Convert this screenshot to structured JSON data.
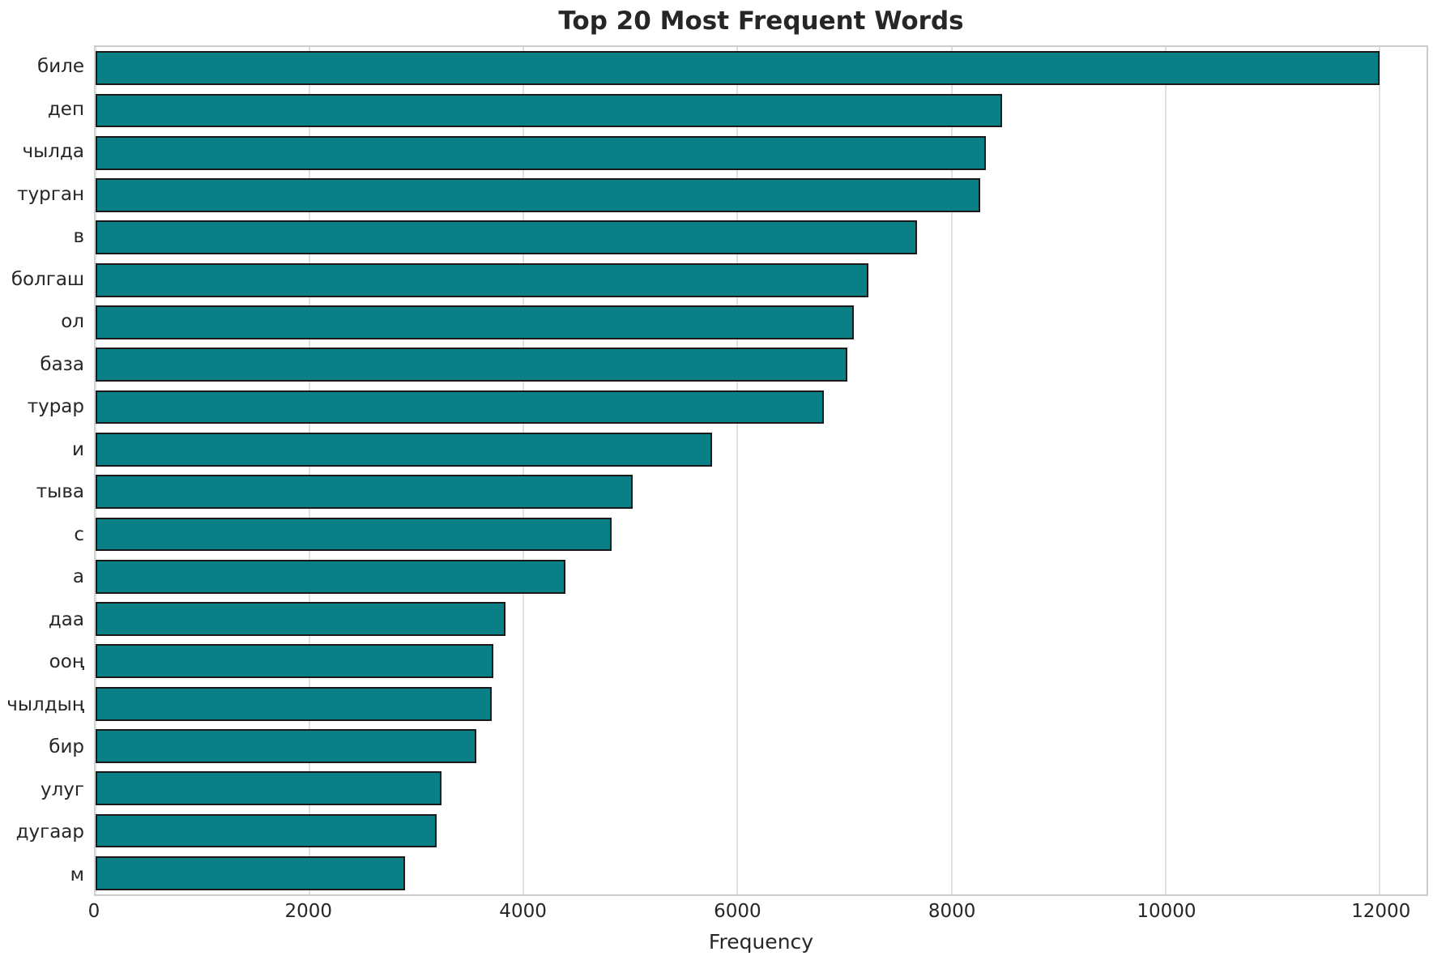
{
  "chart_data": {
    "type": "bar",
    "orientation": "horizontal",
    "title": "Top 20 Most Frequent Words",
    "xlabel": "Frequency",
    "ylabel": "",
    "categories": [
      "биле",
      "деп",
      "чылда",
      "турган",
      "в",
      "болгаш",
      "ол",
      "база",
      "турар",
      "и",
      "тыва",
      "с",
      "а",
      "даа",
      "ооң",
      "чылдың",
      "бир",
      "улуг",
      "дугаар",
      "м"
    ],
    "values": [
      12000,
      8470,
      8320,
      8270,
      7680,
      7220,
      7090,
      7030,
      6810,
      5760,
      5020,
      4820,
      4390,
      3830,
      3720,
      3700,
      3560,
      3230,
      3190,
      2890
    ],
    "xlim": [
      0,
      12440
    ],
    "xticks": [
      0,
      2000,
      4000,
      6000,
      8000,
      10000,
      12000
    ],
    "grid": true,
    "legend": null,
    "bar_color": "#0a7f86",
    "bar_edge_color": "#1a1a1a",
    "grid_color": "#e0e0e0",
    "title_color": "#262626"
  }
}
